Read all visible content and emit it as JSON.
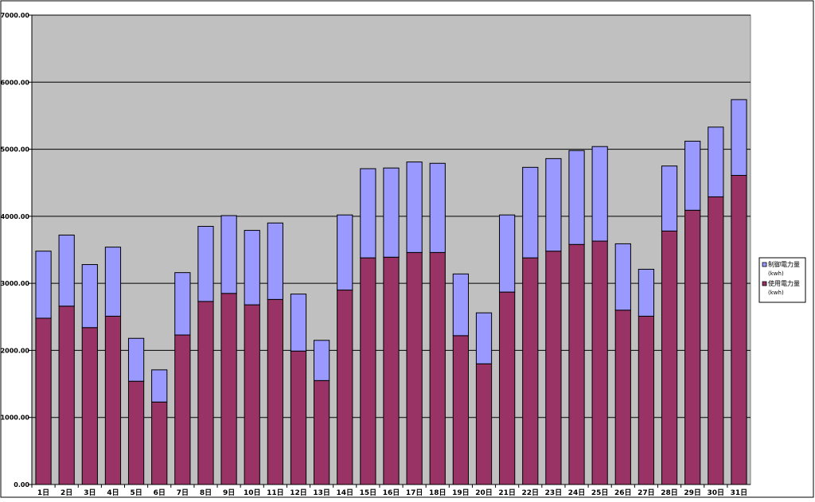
{
  "chart_data": {
    "type": "bar",
    "stacked": true,
    "categories": [
      "1日",
      "2日",
      "3日",
      "4日",
      "5日",
      "6日",
      "7日",
      "8日",
      "9日",
      "10日",
      "11日",
      "12日",
      "13日",
      "14日",
      "15日",
      "16日",
      "17日",
      "18日",
      "19日",
      "20日",
      "21日",
      "22日",
      "23日",
      "24日",
      "25日",
      "26日",
      "27日",
      "28日",
      "29日",
      "30日",
      "31日"
    ],
    "series": [
      {
        "name": "使用電力量",
        "unit": "(kwh)",
        "color": "#993366",
        "values": [
          2480,
          2660,
          2340,
          2510,
          1540,
          1230,
          2230,
          2730,
          2850,
          2680,
          2760,
          1990,
          1550,
          2900,
          3380,
          3390,
          3460,
          3460,
          2220,
          1800,
          2870,
          3380,
          3480,
          3580,
          3630,
          2600,
          2510,
          3780,
          4090,
          4290,
          4610
        ]
      },
      {
        "name": "制御電力量",
        "unit": "(kwh)",
        "color": "#9999ff",
        "values": [
          1000,
          1060,
          940,
          1030,
          640,
          480,
          930,
          1120,
          1160,
          1110,
          1140,
          850,
          600,
          1120,
          1330,
          1330,
          1350,
          1330,
          920,
          760,
          1150,
          1350,
          1380,
          1400,
          1410,
          990,
          700,
          970,
          1030,
          1040,
          1130
        ]
      }
    ],
    "ylim": [
      0,
      7000
    ],
    "yticks": [
      0,
      1000,
      2000,
      3000,
      4000,
      5000,
      6000,
      7000
    ],
    "ytick_labels": [
      "0.00",
      "1000.00",
      "2000.00",
      "3000.00",
      "4000.00",
      "5000.00",
      "6000.00",
      "7000.00"
    ],
    "title": "",
    "xlabel": "",
    "ylabel": "",
    "grid": true,
    "legend_position": "right",
    "plot_background": "#c0c0c0"
  }
}
